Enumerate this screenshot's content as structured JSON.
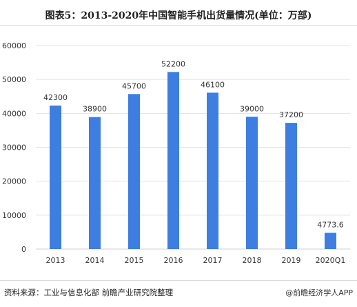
{
  "chart_title": "图表5：2013-2020年中国智能手机出货量情况(单位：万部)",
  "source_note": "资料来源：工业与信息化部 前瞻产业研究院整理",
  "brand_footer": "@前瞻经济学人APP",
  "colors": {
    "bar": "#3d7ee0",
    "gridline": "#e3e3e3",
    "axis_text": "#333333",
    "title": "#222222"
  },
  "chart_data": {
    "type": "bar",
    "title": "图表5：2013-2020年中国智能手机出货量情况(单位：万部)",
    "xlabel": "",
    "ylabel": "",
    "categories": [
      "2013",
      "2014",
      "2015",
      "2016",
      "2017",
      "2018",
      "2019",
      "2020Q1"
    ],
    "values": [
      42300,
      38900,
      45700,
      52200,
      46100,
      39000,
      37200,
      4773.6
    ],
    "value_labels": [
      "42300",
      "38900",
      "45700",
      "52200",
      "46100",
      "39000",
      "37200",
      "4773.6"
    ],
    "ylim": [
      0,
      60000
    ],
    "yticks": [
      0,
      10000,
      20000,
      30000,
      40000,
      50000,
      60000
    ],
    "ytick_labels": [
      "0",
      "10000",
      "20000",
      "30000",
      "40000",
      "50000",
      "60000"
    ],
    "grid": true,
    "legend": "none"
  }
}
